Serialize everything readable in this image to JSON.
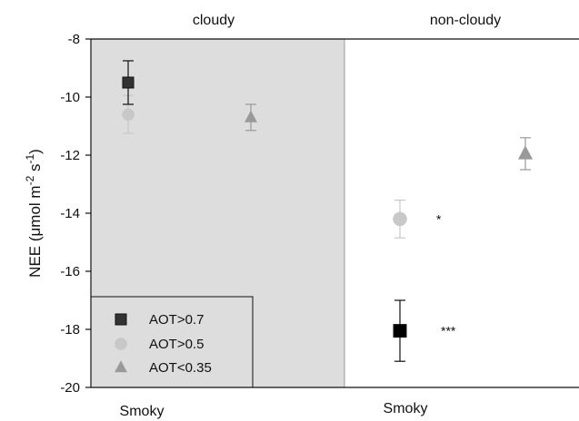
{
  "chart_data": {
    "type": "scatter",
    "ylabel_parts": [
      "NEE (",
      "μ",
      "mol m",
      "-2",
      " s",
      "-1",
      ")"
    ],
    "panels": [
      "cloudy",
      "non-cloudy"
    ],
    "x_categories": [
      "Smoky",
      "Smoky"
    ],
    "ylim": [
      -20,
      -8
    ],
    "yticks": [
      -8,
      -10,
      -12,
      -14,
      -16,
      -18,
      -20
    ],
    "grid": false,
    "legend_position": "bottom-left",
    "legend": [
      {
        "label": "AOT>0.7",
        "marker": "square",
        "color": "#333333"
      },
      {
        "label": "AOT>0.5",
        "marker": "circle",
        "color": "#c8c8c8"
      },
      {
        "label": "AOT<0.35",
        "marker": "triangle",
        "color": "#999999"
      }
    ],
    "shaded_panel_color": "#dddddd",
    "series": [
      {
        "name": "AOT>0.7",
        "marker": "square",
        "color": "#333333",
        "points": [
          {
            "panel": "cloudy",
            "value": -9.5,
            "error": 0.75,
            "annotation": ""
          },
          {
            "panel": "non-cloudy",
            "value": -18.05,
            "error": 1.05,
            "annotation": "***"
          }
        ]
      },
      {
        "name": "AOT>0.5",
        "marker": "circle",
        "color": "#c8c8c8",
        "points": [
          {
            "panel": "cloudy",
            "value": -10.6,
            "error": 0.65,
            "annotation": ""
          },
          {
            "panel": "non-cloudy",
            "value": -14.2,
            "error": 0.65,
            "annotation": "*"
          }
        ]
      },
      {
        "name": "AOT<0.35",
        "marker": "triangle",
        "color": "#999999",
        "points": [
          {
            "panel": "cloudy",
            "value": -10.7,
            "error": 0.45,
            "annotation": ""
          },
          {
            "panel": "non-cloudy",
            "value": -11.95,
            "error": 0.55,
            "annotation": ""
          }
        ]
      }
    ]
  }
}
